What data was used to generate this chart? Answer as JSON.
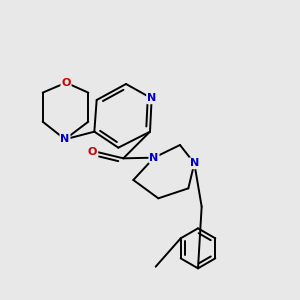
{
  "bg_color": "#e8e8e8",
  "atom_color_N": "#0000cc",
  "atom_color_O": "#cc0000",
  "line_color": "#000000",
  "line_width": 1.4,
  "fig_w": 3.0,
  "fig_h": 3.0,
  "dpi": 100,
  "xlim": [
    0,
    10
  ],
  "ylim": [
    0,
    10
  ]
}
